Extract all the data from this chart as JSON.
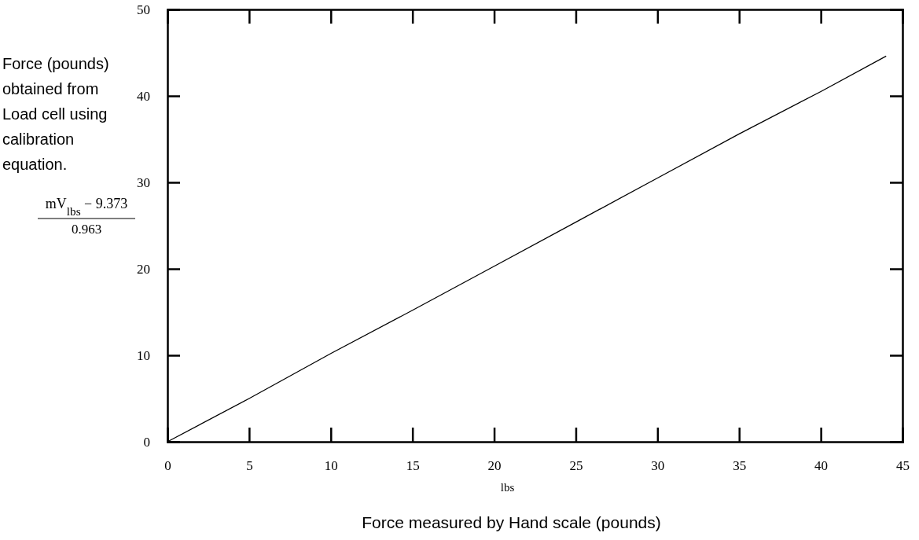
{
  "chart_data": {
    "type": "line",
    "xlabel": "lbs",
    "ylabel": "Force (pounds) obtained from Load cell using calibration equation.",
    "annotations": [
      "mV$_{lbs}$ − 9.373",
      "0.963",
      "Force measured by Hand scale (pounds)"
    ],
    "x": [
      0,
      5,
      10,
      15,
      20,
      25,
      30,
      35,
      40,
      44
    ],
    "series": [
      {
        "color": "#000000",
        "values": [
          0,
          5,
          10.2,
          15.2,
          20.3,
          25.4,
          30.5,
          35.6,
          40.5,
          44.6
        ]
      }
    ],
    "xlim": [
      0,
      45
    ],
    "xticks": [
      0,
      5,
      10,
      15,
      20,
      25,
      30,
      35,
      40,
      45
    ],
    "ylim": [
      0,
      50
    ],
    "yticks": [
      0,
      10,
      20,
      30,
      40,
      50
    ],
    "grid": false
  }
}
